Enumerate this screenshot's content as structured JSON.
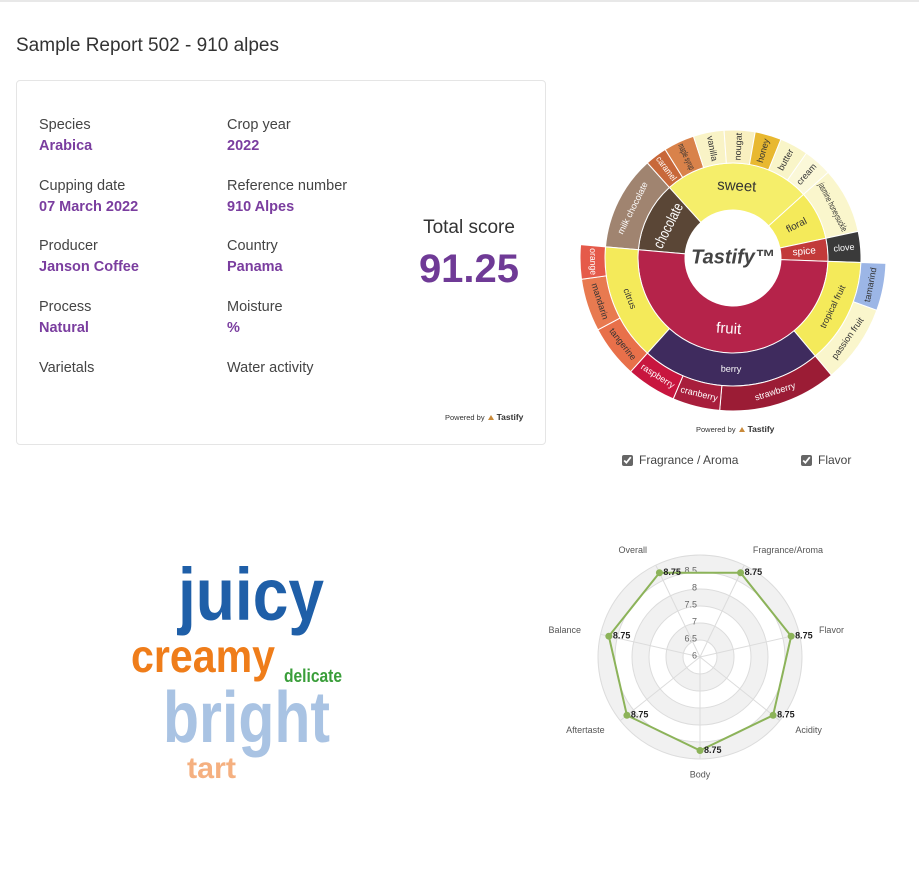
{
  "header": {
    "title": "Sample Report 502 - 910 alpes"
  },
  "info": {
    "fields": [
      {
        "label": "Species",
        "value": "Arabica"
      },
      {
        "label": "Crop year",
        "value": "2022"
      },
      {
        "label": "Cupping date",
        "value": "07 March 2022"
      },
      {
        "label": "Reference number",
        "value": "910 Alpes"
      },
      {
        "label": "Producer",
        "value": "Janson Coffee"
      },
      {
        "label": "Country",
        "value": "Panama"
      },
      {
        "label": "Process",
        "value": "Natural"
      },
      {
        "label": "Moisture",
        "value": "%"
      },
      {
        "label": "Varietals"
      },
      {
        "label": "Water activity"
      }
    ],
    "score_label": "Total score",
    "score": "91.25"
  },
  "powered_by": {
    "prefix": "Powered by",
    "brand": "Tastify"
  },
  "wheel_options": [
    "Fragrance / Aroma",
    "Flavor"
  ],
  "word_cloud": {
    "words": [
      {
        "text": "juicy",
        "color": "#1f5fa8"
      },
      {
        "text": "creamy",
        "color": "#ef7d1a"
      },
      {
        "text": "delicate",
        "color": "#3a9e3a"
      },
      {
        "text": "bright",
        "color": "#a9c3e3"
      },
      {
        "text": "tart",
        "color": "#f5b080"
      }
    ]
  },
  "chart_data": [
    {
      "type": "sunburst",
      "center_label": "Tastify™",
      "nodes": [
        {
          "name": "chocolate",
          "color": "#5a4636",
          "children": [
            {
              "name": "milk chocolate",
              "color": "#a08470",
              "value": 43
            }
          ]
        },
        {
          "name": "sweet",
          "color": "#f5ee6a",
          "children": [
            {
              "name": "caramel",
              "color": "#c8683a",
              "value": 10
            },
            {
              "name": "maple syrup",
              "color": "#d9824a",
              "value": 14
            },
            {
              "name": "vanilla",
              "color": "#f9f3c6",
              "value": 14
            },
            {
              "name": "nougat",
              "color": "#f9f0c0",
              "value": 14
            },
            {
              "name": "honey",
              "color": "#e8b830",
              "value": 12
            },
            {
              "name": "butter",
              "color": "#f9f5c8",
              "value": 13
            },
            {
              "name": "cream",
              "color": "#fbf8d8",
              "value": 13
            }
          ]
        },
        {
          "name": "floral",
          "color": "#f4ea5a",
          "children": [
            {
              "name": "jasmine honeysuckle",
              "color": "#faf6cc",
              "value": 30
            }
          ]
        },
        {
          "name": "spice",
          "color": "#c23a3a",
          "children": [
            {
              "name": "clove",
              "color": "#3a3a3a",
              "value": 14
            }
          ]
        },
        {
          "name": "fruit",
          "color": "#b5234a",
          "children": [
            {
              "name": "tropical fruit",
              "color": "#f4ea5a",
              "children": [
                {
                  "name": "tamarind",
                  "color": "#9cb6e6",
                  "value": 18
                },
                {
                  "name": "passion fruit",
                  "color": "#faf6cc",
                  "value": 30
                }
              ]
            },
            {
              "name": "berry",
              "color": "#3f2b5e",
              "children": [
                {
                  "name": "strawberry",
                  "color": "#9b1c35",
                  "value": 45
                },
                {
                  "name": "cranberry",
                  "color": "#a81e3c",
                  "value": 18
                },
                {
                  "name": "raspberry",
                  "color": "#c8163f",
                  "value": 19
                }
              ]
            },
            {
              "name": "citrus",
              "color": "#f4ea5a",
              "children": [
                {
                  "name": "tangerine",
                  "color": "#e8704a",
                  "value": 20
                },
                {
                  "name": "mandarin",
                  "color": "#e87a50",
                  "value": 20
                },
                {
                  "name": "orange",
                  "color": "#e55a4a",
                  "value": 13
                }
              ]
            }
          ]
        }
      ]
    },
    {
      "type": "radar",
      "categories": [
        "Fragrance/Aroma",
        "Flavor",
        "Acidity",
        "Body",
        "Aftertaste",
        "Balance",
        "Overall"
      ],
      "values": [
        8.75,
        8.75,
        8.75,
        8.75,
        8.75,
        8.75,
        8.75
      ],
      "color": "#8cb359",
      "ylim": [
        6,
        9
      ],
      "yticks": [
        6,
        6.5,
        7,
        7.5,
        8,
        8.5
      ],
      "grid": true
    }
  ]
}
